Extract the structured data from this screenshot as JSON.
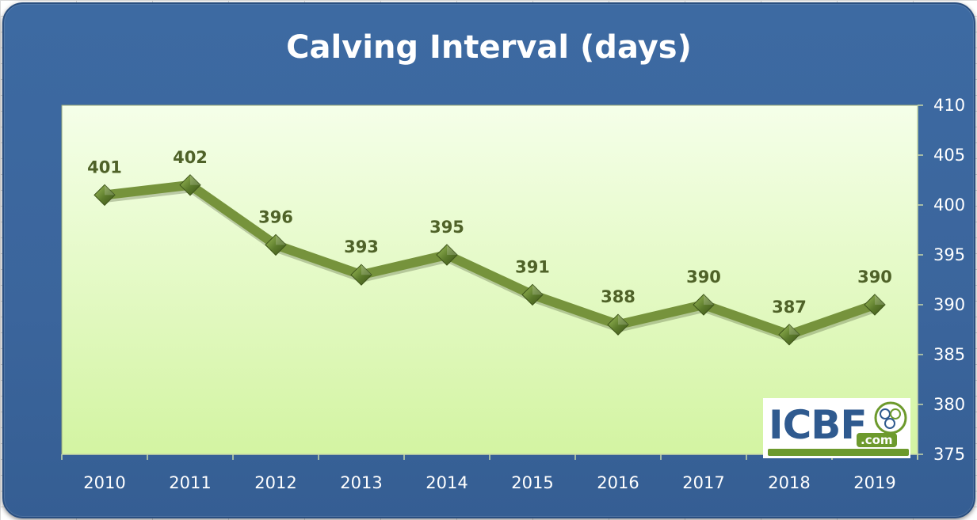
{
  "chart_data": {
    "type": "line",
    "title": "Calving Interval (days)",
    "categories": [
      "2010",
      "2011",
      "2012",
      "2013",
      "2014",
      "2015",
      "2016",
      "2017",
      "2018",
      "2019"
    ],
    "values": [
      401,
      402,
      396,
      393,
      395,
      391,
      388,
      390,
      387,
      390
    ],
    "data_labels": [
      "401",
      "402",
      "396",
      "393",
      "395",
      "391",
      "388",
      "390",
      "387",
      "390"
    ],
    "y_ticks": [
      "375",
      "380",
      "385",
      "390",
      "395",
      "400",
      "405",
      "410"
    ],
    "ylim": [
      375,
      410
    ],
    "y_axis_side": "right",
    "xlabel": "",
    "ylabel": "",
    "grid": false,
    "legend": "none",
    "marker": "diamond",
    "colors": {
      "frame": "#3b659c",
      "plot_top": "#f5ffe9",
      "plot_bottom": "#d3f4a2",
      "line": "#76933c",
      "marker": "#5b7a2b",
      "label": "#4f6228",
      "axis_text": "#ffffff"
    }
  },
  "logo": {
    "text": "ICBF",
    "suffix": ".com"
  }
}
